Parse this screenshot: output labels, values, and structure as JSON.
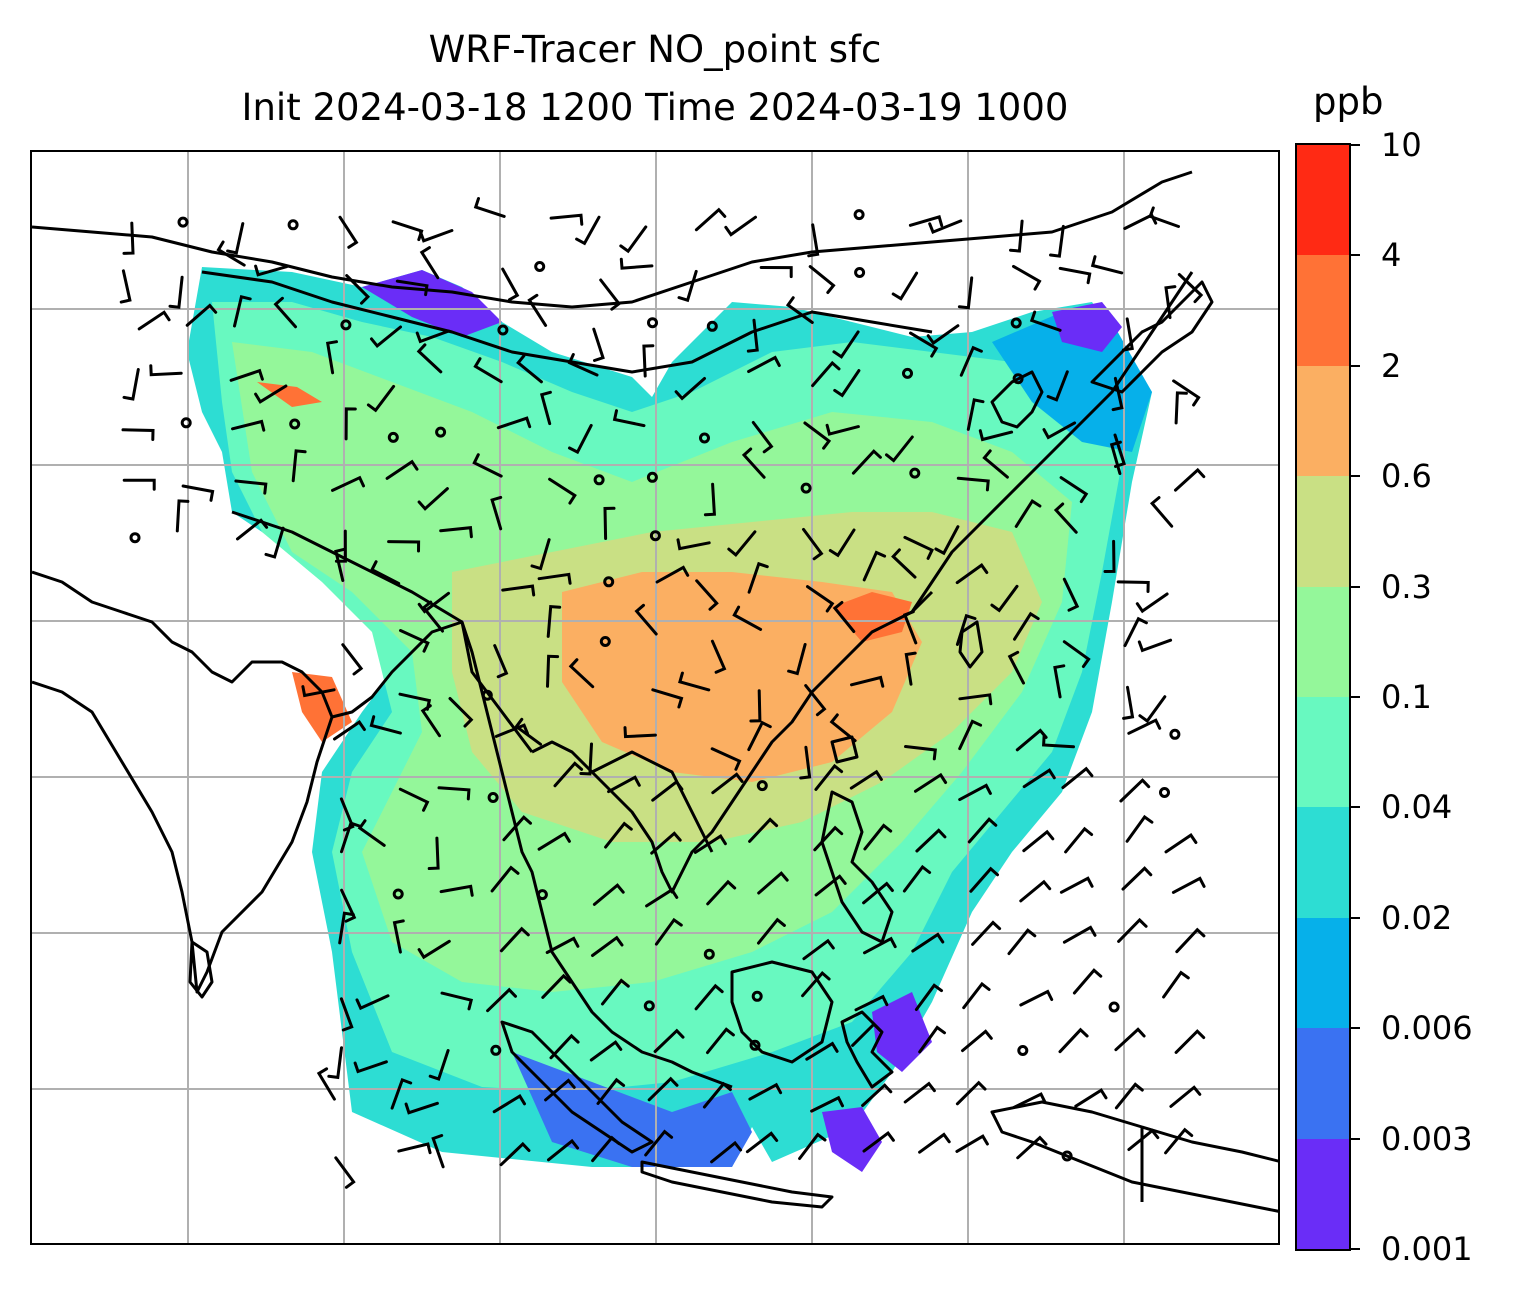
{
  "title": {
    "line1": "WRF-Tracer NO_point sfc",
    "line2": "Init 2024-03-18 1200 Time 2024-03-19 1000"
  },
  "colorbar": {
    "units": "ppb",
    "tick_labels": [
      "0.001",
      "0.003",
      "0.006",
      "0.02",
      "0.04",
      "0.1",
      "0.3",
      "0.6",
      "2",
      "4",
      "10"
    ],
    "colors": [
      "#6a2df7",
      "#3a72f2",
      "#06b0ea",
      "#2dddd3",
      "#68f9c0",
      "#94f79a",
      "#c9e084",
      "#fbaf62",
      "#ff7236",
      "#ff2a14"
    ]
  },
  "map": {
    "projection": "PlateCarree",
    "gridlines": true,
    "gridline_color": "#b0b0b0",
    "coastline_color": "#000000",
    "wind_barbs": true,
    "field": "NO_point surface concentration"
  }
}
